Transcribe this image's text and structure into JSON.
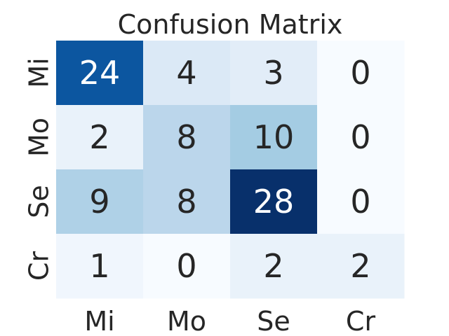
{
  "chart_data": {
    "type": "heatmap",
    "title": "Confusion Matrix",
    "x_tick_labels": [
      "Mi",
      "Mo",
      "Se",
      "Cr"
    ],
    "y_tick_labels": [
      "Mi",
      "Mo",
      "Se",
      "Cr"
    ],
    "matrix": [
      [
        24,
        4,
        3,
        0
      ],
      [
        2,
        8,
        10,
        0
      ],
      [
        9,
        8,
        28,
        0
      ],
      [
        1,
        0,
        2,
        2
      ]
    ],
    "colormap": "Blues",
    "color_range": [
      0,
      28
    ],
    "colorbar": false,
    "grid": false,
    "low_text_color": "#262626",
    "high_text_color": "#ffffff"
  }
}
